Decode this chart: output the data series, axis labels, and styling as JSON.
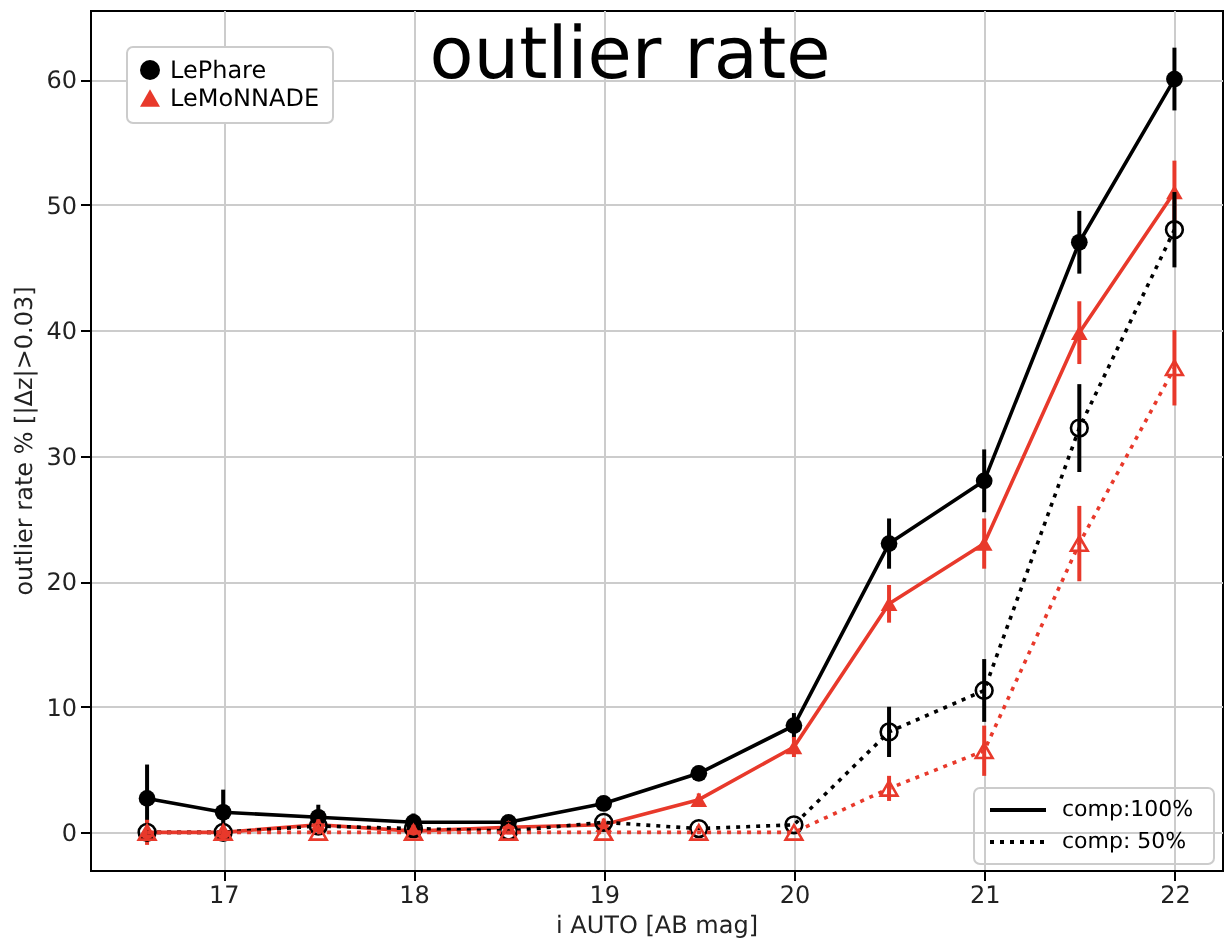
{
  "chart_data": {
    "type": "line",
    "title": "outlier rate",
    "xlabel": "i AUTO [AB mag]",
    "ylabel": "outlier rate % [|Δz|>0.03]",
    "x": [
      16.6,
      17,
      17.5,
      18,
      18.5,
      19,
      19.5,
      20,
      20.5,
      21,
      21.5,
      22
    ],
    "series": [
      {
        "name": "LePhare",
        "color": "#000000",
        "marker": "circle",
        "line_style": "solid",
        "values": [
          2.7,
          1.6,
          1.2,
          0.8,
          0.8,
          2.3,
          4.7,
          8.5,
          23,
          28,
          47,
          60
        ],
        "errors": [
          2.7,
          1.8,
          1,
          0.7,
          0.5,
          0.6,
          0.6,
          1,
          2,
          2.5,
          2.5,
          2.5
        ]
      },
      {
        "name": "LeMoNNADE",
        "color": "#e8392b",
        "marker": "triangle",
        "line_style": "solid",
        "values": [
          0,
          0,
          0.6,
          0.1,
          0.4,
          0.6,
          2.6,
          6.8,
          18.2,
          23,
          39.8,
          51
        ],
        "errors": [
          1,
          0.5,
          0.6,
          0.5,
          0.5,
          0.5,
          0.5,
          0.8,
          1.5,
          2,
          2.5,
          2.5
        ]
      },
      {
        "color": "#000000",
        "marker": "circle",
        "line_style": "dotted",
        "values": [
          0,
          0,
          0.5,
          0.3,
          0.1,
          0.8,
          0.3,
          0.6,
          8,
          11.3,
          32.2,
          48
        ],
        "errors": [
          null,
          null,
          null,
          null,
          null,
          null,
          null,
          null,
          2,
          2.5,
          3.5,
          3
        ]
      },
      {
        "color": "#e8392b",
        "marker": "triangle",
        "line_style": "dotted",
        "values": [
          0,
          0,
          0,
          0,
          0,
          0,
          0,
          0,
          3.5,
          6.5,
          23,
          37
        ],
        "errors": [
          null,
          null,
          null,
          null,
          null,
          null,
          null,
          null,
          1,
          2,
          3,
          3
        ]
      }
    ],
    "annotations": [
      "comp:100%",
      "comp: 50%"
    ],
    "xlim": [
      16.3,
      22.25
    ],
    "xticks": [
      17,
      18,
      19,
      20,
      21,
      22
    ],
    "ylim": [
      -3,
      65.5
    ],
    "yticks": [
      0,
      10,
      20,
      30,
      40,
      50,
      60
    ],
    "grid": true,
    "legend": "top left"
  }
}
